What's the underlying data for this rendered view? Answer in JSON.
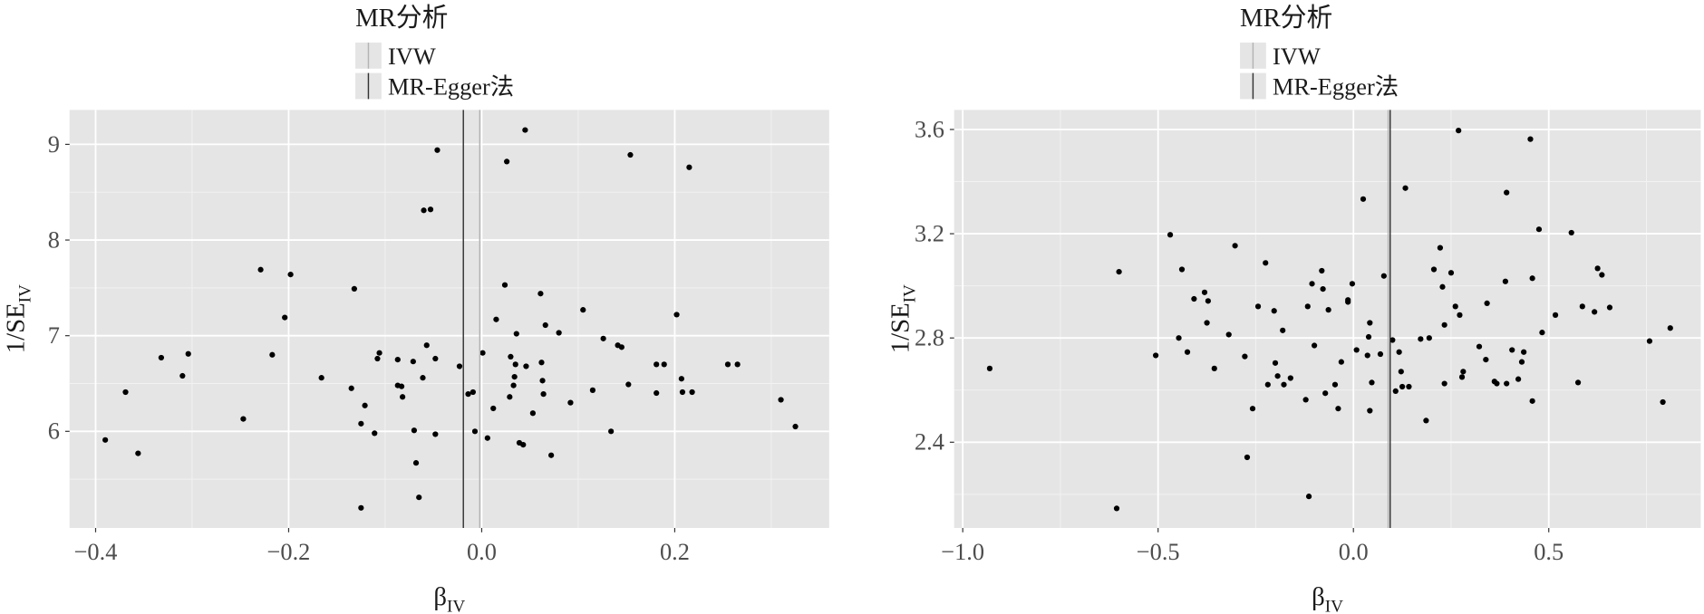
{
  "chart_data": [
    {
      "type": "scatter",
      "title": "MR分析",
      "x_label": "β",
      "x_label_subscript": "IV",
      "y_label": "1/SE",
      "y_label_subscript": "IV",
      "color": "#000000",
      "grid": true,
      "xlim": [
        -0.427,
        0.36
      ],
      "ylim": [
        4.99,
        9.36
      ],
      "xticks": [
        {
          "value": -0.4,
          "label": "−0.4"
        },
        {
          "value": -0.2,
          "label": "−0.2"
        },
        {
          "value": 0,
          "label": "0.0"
        },
        0.2
      ],
      "yticks": [
        6,
        7,
        8,
        9
      ],
      "vlines": [
        {
          "name": "IVW",
          "x": -0.002,
          "color": "#b3b3b3"
        },
        {
          "name": "MR-Egger法",
          "x": -0.019,
          "color": "#333333"
        }
      ],
      "x": [
        -0.39,
        -0.369,
        -0.356,
        -0.332,
        -0.31,
        -0.304,
        -0.247,
        -0.229,
        -0.217,
        -0.204,
        -0.198,
        -0.166,
        -0.135,
        -0.132,
        -0.125,
        -0.125,
        -0.121,
        -0.111,
        -0.108,
        -0.106,
        -0.087,
        -0.087,
        -0.083,
        -0.082,
        -0.071,
        -0.07,
        -0.068,
        -0.065,
        -0.061,
        -0.06,
        -0.057,
        -0.053,
        -0.048,
        -0.048,
        -0.046,
        -0.023,
        -0.014,
        -0.009,
        -0.007,
        0.001,
        0.006,
        0.012,
        0.015,
        0.024,
        0.026,
        0.029,
        0.03,
        0.033,
        0.034,
        0.035,
        0.036,
        0.039,
        0.043,
        0.045,
        0.046,
        0.053,
        0.061,
        0.062,
        0.063,
        0.064,
        0.066,
        0.072,
        0.08,
        0.092,
        0.105,
        0.115,
        0.126,
        0.134,
        0.141,
        0.145,
        0.152,
        0.154,
        0.181,
        0.181,
        0.189,
        0.202,
        0.207,
        0.208,
        0.215,
        0.218,
        0.255,
        0.265,
        0.31,
        0.325
      ],
      "values": [
        5.91,
        6.41,
        5.77,
        6.77,
        6.58,
        6.81,
        6.13,
        7.69,
        6.8,
        7.19,
        7.64,
        6.56,
        6.45,
        7.49,
        6.08,
        5.2,
        6.27,
        5.98,
        6.76,
        6.82,
        6.75,
        6.48,
        6.47,
        6.36,
        6.73,
        6.01,
        5.67,
        5.31,
        6.56,
        8.31,
        6.9,
        8.32,
        6.76,
        5.97,
        8.94,
        6.68,
        6.39,
        6.41,
        6.0,
        6.82,
        5.93,
        6.24,
        7.17,
        7.53,
        8.82,
        6.36,
        6.78,
        6.48,
        6.57,
        6.7,
        7.02,
        5.88,
        5.86,
        9.15,
        6.68,
        6.19,
        7.44,
        6.72,
        6.53,
        6.39,
        7.11,
        5.75,
        7.03,
        6.3,
        7.27,
        6.43,
        6.97,
        6.0,
        6.9,
        6.88,
        6.49,
        8.89,
        6.4,
        6.7,
        6.7,
        7.22,
        6.55,
        6.41,
        8.76,
        6.41,
        6.7,
        6.7,
        6.33,
        6.05
      ]
    },
    {
      "type": "scatter",
      "title": "MR分析",
      "x_label": "β",
      "x_label_subscript": "IV",
      "y_label": "1/SE",
      "y_label_subscript": "IV",
      "color": "#000000",
      "grid": true,
      "xlim": [
        -1.022,
        0.889
      ],
      "ylim": [
        2.071,
        3.675
      ],
      "xticks": [
        {
          "value": -1.0,
          "label": "−1.0"
        },
        {
          "value": -0.5,
          "label": "−0.5"
        },
        {
          "value": 0,
          "label": "0.0"
        },
        0.5
      ],
      "yticks": [
        2.4,
        2.8,
        3.2,
        3.6
      ],
      "vlines": [
        {
          "name": "IVW",
          "x": 0.089,
          "color": "#b3b3b3"
        },
        {
          "name": "MR-Egger法",
          "x": 0.094,
          "color": "#333333"
        }
      ],
      "x": [
        -0.931,
        -0.606,
        -0.6,
        -0.506,
        -0.469,
        -0.447,
        -0.439,
        -0.425,
        -0.408,
        -0.381,
        -0.375,
        -0.372,
        -0.356,
        -0.319,
        -0.303,
        -0.278,
        -0.272,
        -0.258,
        -0.244,
        -0.225,
        -0.219,
        -0.203,
        -0.2,
        -0.194,
        -0.181,
        -0.178,
        -0.161,
        -0.122,
        -0.117,
        -0.114,
        -0.106,
        -0.1,
        -0.081,
        -0.078,
        -0.072,
        -0.064,
        -0.047,
        -0.039,
        -0.031,
        -0.014,
        -0.014,
        -0.003,
        0.008,
        0.025,
        0.036,
        0.039,
        0.042,
        0.042,
        0.047,
        0.069,
        0.078,
        0.1,
        0.108,
        0.117,
        0.122,
        0.125,
        0.133,
        0.142,
        0.172,
        0.186,
        0.194,
        0.206,
        0.222,
        0.228,
        0.233,
        0.233,
        0.25,
        0.261,
        0.269,
        0.272,
        0.278,
        0.281,
        0.322,
        0.339,
        0.342,
        0.361,
        0.367,
        0.392,
        0.392,
        0.389,
        0.406,
        0.422,
        0.431,
        0.436,
        0.453,
        0.458,
        0.458,
        0.475,
        0.483,
        0.517,
        0.558,
        0.575,
        0.586,
        0.617,
        0.625,
        0.636,
        0.656,
        0.758,
        0.792,
        0.811
      ],
      "values": [
        2.683,
        2.146,
        3.054,
        2.733,
        3.196,
        2.8,
        3.063,
        2.746,
        2.95,
        2.975,
        2.858,
        2.942,
        2.683,
        2.813,
        3.154,
        2.729,
        2.342,
        2.529,
        2.921,
        3.088,
        2.621,
        2.904,
        2.704,
        2.654,
        2.829,
        2.621,
        2.646,
        2.563,
        2.921,
        2.192,
        3.008,
        2.771,
        3.058,
        2.988,
        2.588,
        2.908,
        2.621,
        2.529,
        2.708,
        2.938,
        2.946,
        3.008,
        2.754,
        3.333,
        2.733,
        2.804,
        2.521,
        2.858,
        2.629,
        2.738,
        3.038,
        2.792,
        2.596,
        2.746,
        2.671,
        2.613,
        3.375,
        2.613,
        2.796,
        2.483,
        2.8,
        3.063,
        3.146,
        2.996,
        2.85,
        2.625,
        3.05,
        2.921,
        3.596,
        2.888,
        2.65,
        2.671,
        2.767,
        2.717,
        2.933,
        2.633,
        2.625,
        2.625,
        3.358,
        3.017,
        2.754,
        2.642,
        2.708,
        2.746,
        3.563,
        3.029,
        2.558,
        3.217,
        2.821,
        2.888,
        3.204,
        2.629,
        2.921,
        2.9,
        3.067,
        3.042,
        2.917,
        2.788,
        2.554,
        2.838
      ]
    }
  ]
}
